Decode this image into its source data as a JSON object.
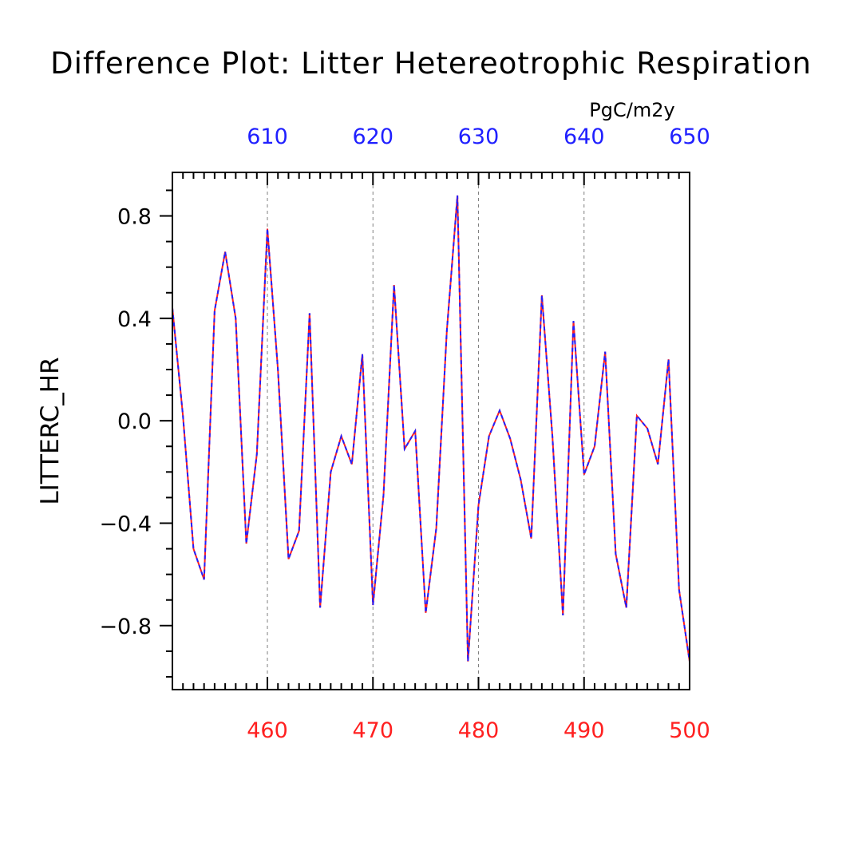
{
  "chart_data": {
    "type": "line",
    "title": "Difference Plot: Litter Hetereotrophic Respiration",
    "units": "PgC/m2y",
    "ylabel": "LITTERC_HR",
    "xlim": [
      451,
      500
    ],
    "ylim": [
      -1.05,
      0.97
    ],
    "bottom_axis": {
      "color": "#ff2020",
      "ticks": [
        460,
        470,
        480,
        490,
        500
      ],
      "labels": [
        "460",
        "470",
        "480",
        "490",
        "500"
      ]
    },
    "top_axis": {
      "color": "#2020ff",
      "ticks": [
        460,
        470,
        480,
        490,
        500
      ],
      "labels": [
        "610",
        "620",
        "630",
        "640",
        "650"
      ]
    },
    "y_axis": {
      "ticks": [
        0.8,
        0.4,
        0.0,
        -0.4,
        -0.8
      ],
      "labels": [
        "0.8",
        "0.4",
        "0.0",
        "−0.4",
        "−0.8"
      ]
    },
    "grid": "vertical dashed at major x ticks",
    "x": [
      451,
      452,
      453,
      454,
      455,
      456,
      457,
      458,
      459,
      460,
      461,
      462,
      463,
      464,
      465,
      466,
      467,
      468,
      469,
      470,
      471,
      472,
      473,
      474,
      475,
      476,
      477,
      478,
      479,
      480,
      481,
      482,
      483,
      484,
      485,
      486,
      487,
      488,
      489,
      490,
      491,
      492,
      493,
      494,
      495,
      496,
      497,
      498,
      499,
      500
    ],
    "series": [
      {
        "color": "#ff2020",
        "values": [
          0.44,
          0.02,
          -0.5,
          -0.62,
          0.43,
          0.66,
          0.4,
          -0.48,
          -0.13,
          0.75,
          0.2,
          -0.54,
          -0.43,
          0.42,
          -0.73,
          -0.2,
          -0.06,
          -0.17,
          0.26,
          -0.72,
          -0.29,
          0.53,
          -0.11,
          -0.04,
          -0.75,
          -0.42,
          0.35,
          0.88,
          -0.94,
          -0.33,
          -0.06,
          0.04,
          -0.07,
          -0.23,
          -0.46,
          0.49,
          -0.06,
          -0.76,
          0.39,
          -0.21,
          -0.1,
          0.27,
          -0.52,
          -0.73,
          0.02,
          -0.03,
          -0.17,
          0.24,
          -0.66,
          -0.94
        ]
      },
      {
        "color": "#2020ff",
        "values": [
          0.44,
          0.02,
          -0.5,
          -0.62,
          0.43,
          0.66,
          0.4,
          -0.48,
          -0.13,
          0.75,
          0.2,
          -0.54,
          -0.43,
          0.42,
          -0.73,
          -0.2,
          -0.06,
          -0.17,
          0.26,
          -0.72,
          -0.29,
          0.53,
          -0.11,
          -0.04,
          -0.75,
          -0.42,
          0.35,
          0.88,
          -0.94,
          -0.33,
          -0.06,
          0.04,
          -0.07,
          -0.23,
          -0.46,
          0.49,
          -0.06,
          -0.76,
          0.39,
          -0.21,
          -0.1,
          0.27,
          -0.52,
          -0.73,
          0.02,
          -0.03,
          -0.17,
          0.24,
          -0.66,
          -0.94
        ]
      }
    ]
  }
}
